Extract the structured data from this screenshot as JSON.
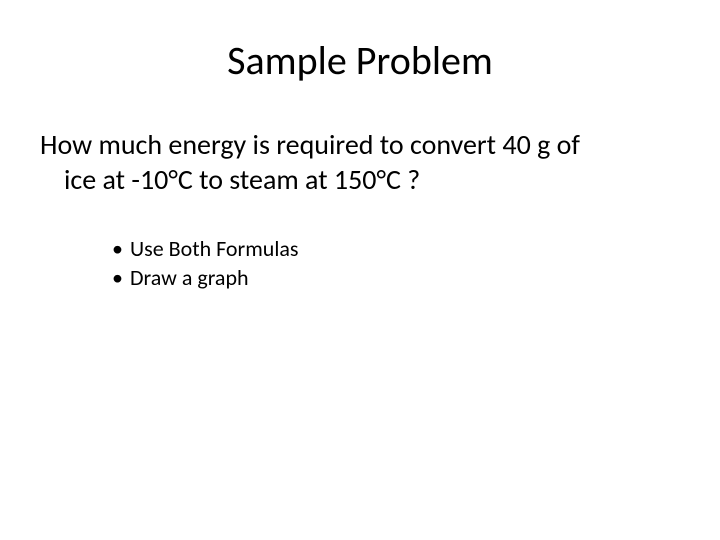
{
  "slide": {
    "title": "Sample Problem",
    "question_line1": "How much energy is required to convert 40 g of",
    "question_line2": "ice at -10°C to steam at 150°C ?",
    "bullets": [
      "Use Both Formulas",
      "Draw a graph"
    ]
  },
  "style": {
    "background_color": "#ffffff",
    "text_color": "#000000",
    "title_fontsize": 40,
    "body_fontsize": 28,
    "bullet_fontsize": 22,
    "font_family": "Calibri"
  }
}
